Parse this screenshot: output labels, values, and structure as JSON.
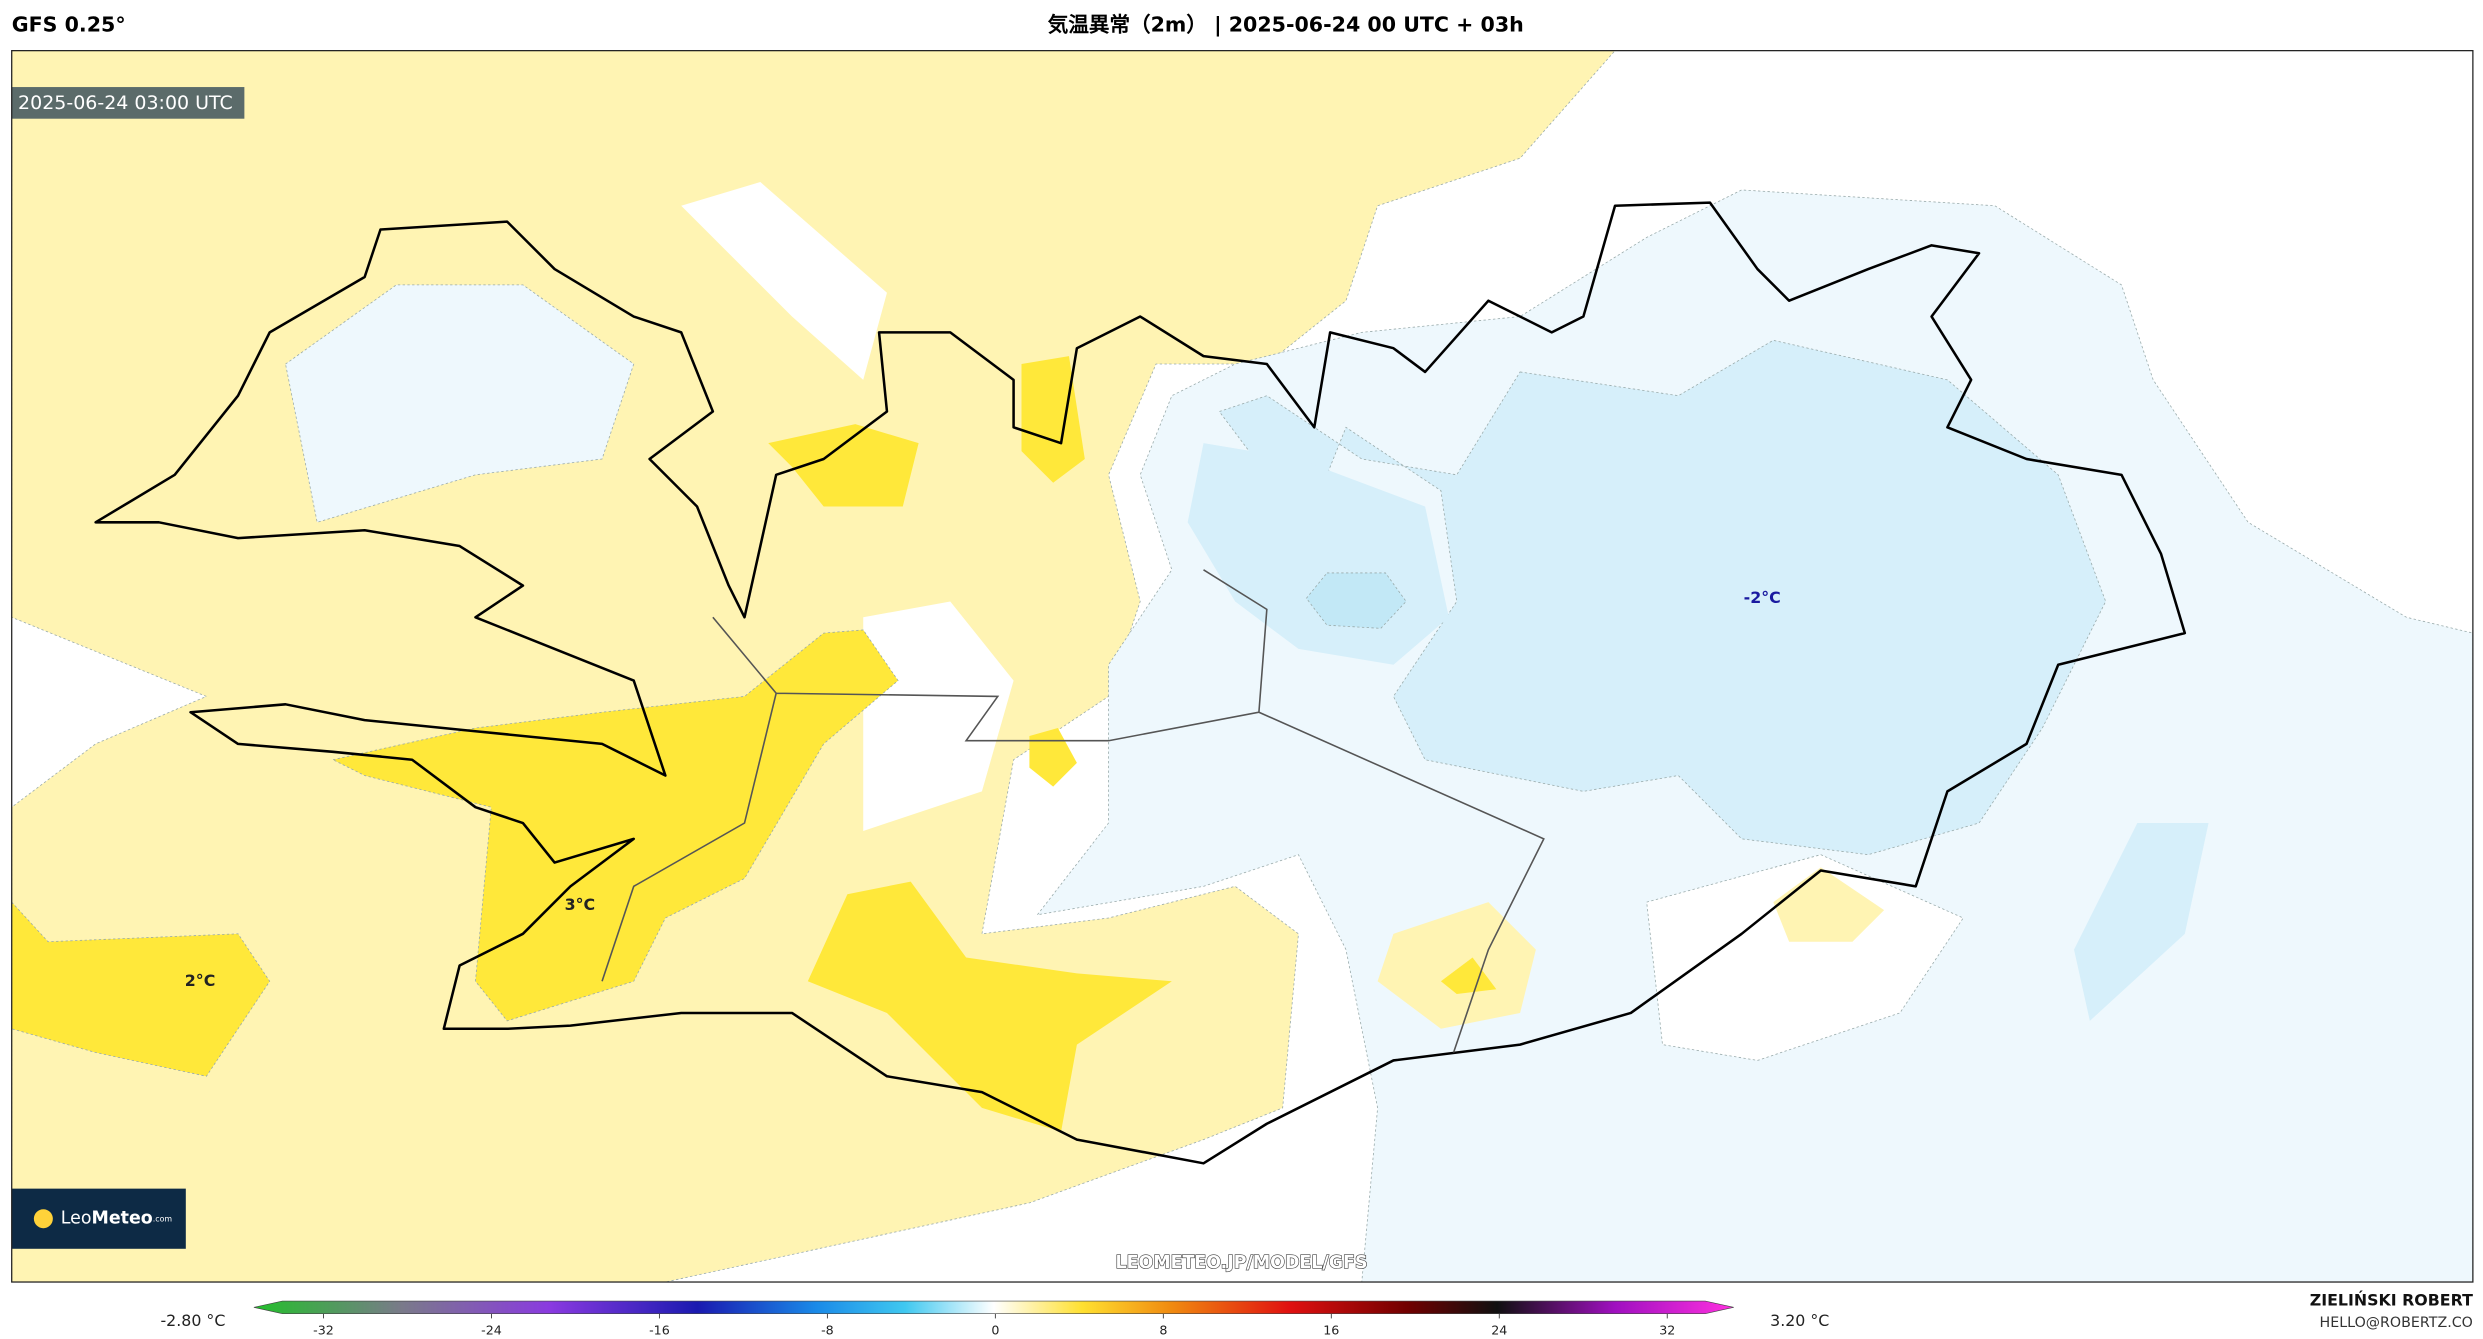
{
  "header": {
    "model": "GFS 0.25°",
    "title": "気温異常（2m） | 2025-06-24 00 UTC + 03h"
  },
  "map": {
    "timestamp": "2025-06-24 03:00 UTC",
    "labels": [
      "-2°C",
      "3°C",
      "2°C"
    ],
    "logo": {
      "name_light": "Leo",
      "name_bold": "Meteo",
      "suffix": ".com"
    },
    "watermark": "LEOMETEO.JP/MODEL/GFS"
  },
  "colorbar": {
    "min_label": "-2.80 °C",
    "max_label": "3.20 °C",
    "ticks": [
      -32,
      -24,
      -16,
      -8,
      0,
      8,
      16,
      24,
      32
    ]
  },
  "footer": {
    "author": "ZIELIŃSKI ROBERT",
    "email": "HELLO@ROBERTZ.CO"
  }
}
